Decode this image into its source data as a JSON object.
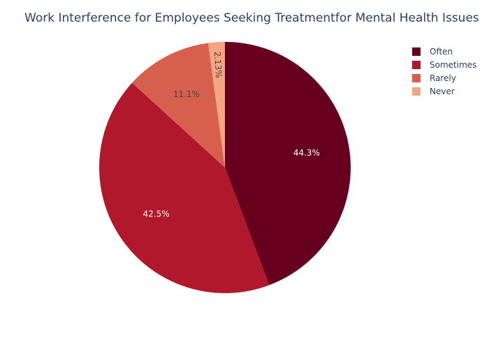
{
  "chart_data": {
    "type": "pie",
    "title": "Work Interference for Employees Seeking Treatmentfor Mental Health Issues",
    "categories": [
      "Often",
      "Sometimes",
      "Rarely",
      "Never"
    ],
    "values": [
      44.3,
      42.5,
      11.1,
      2.13
    ],
    "labels": [
      "44.3%",
      "42.5%",
      "11.1%",
      "2.13%"
    ],
    "colors": [
      "#67001f",
      "#b2182b",
      "#d6604d",
      "#f4a582"
    ],
    "label_colors": [
      "#ffffff",
      "#ffffff",
      "#444444",
      "#444444"
    ],
    "legend_position": "top-right",
    "direction": "clockwise",
    "start": "top"
  }
}
